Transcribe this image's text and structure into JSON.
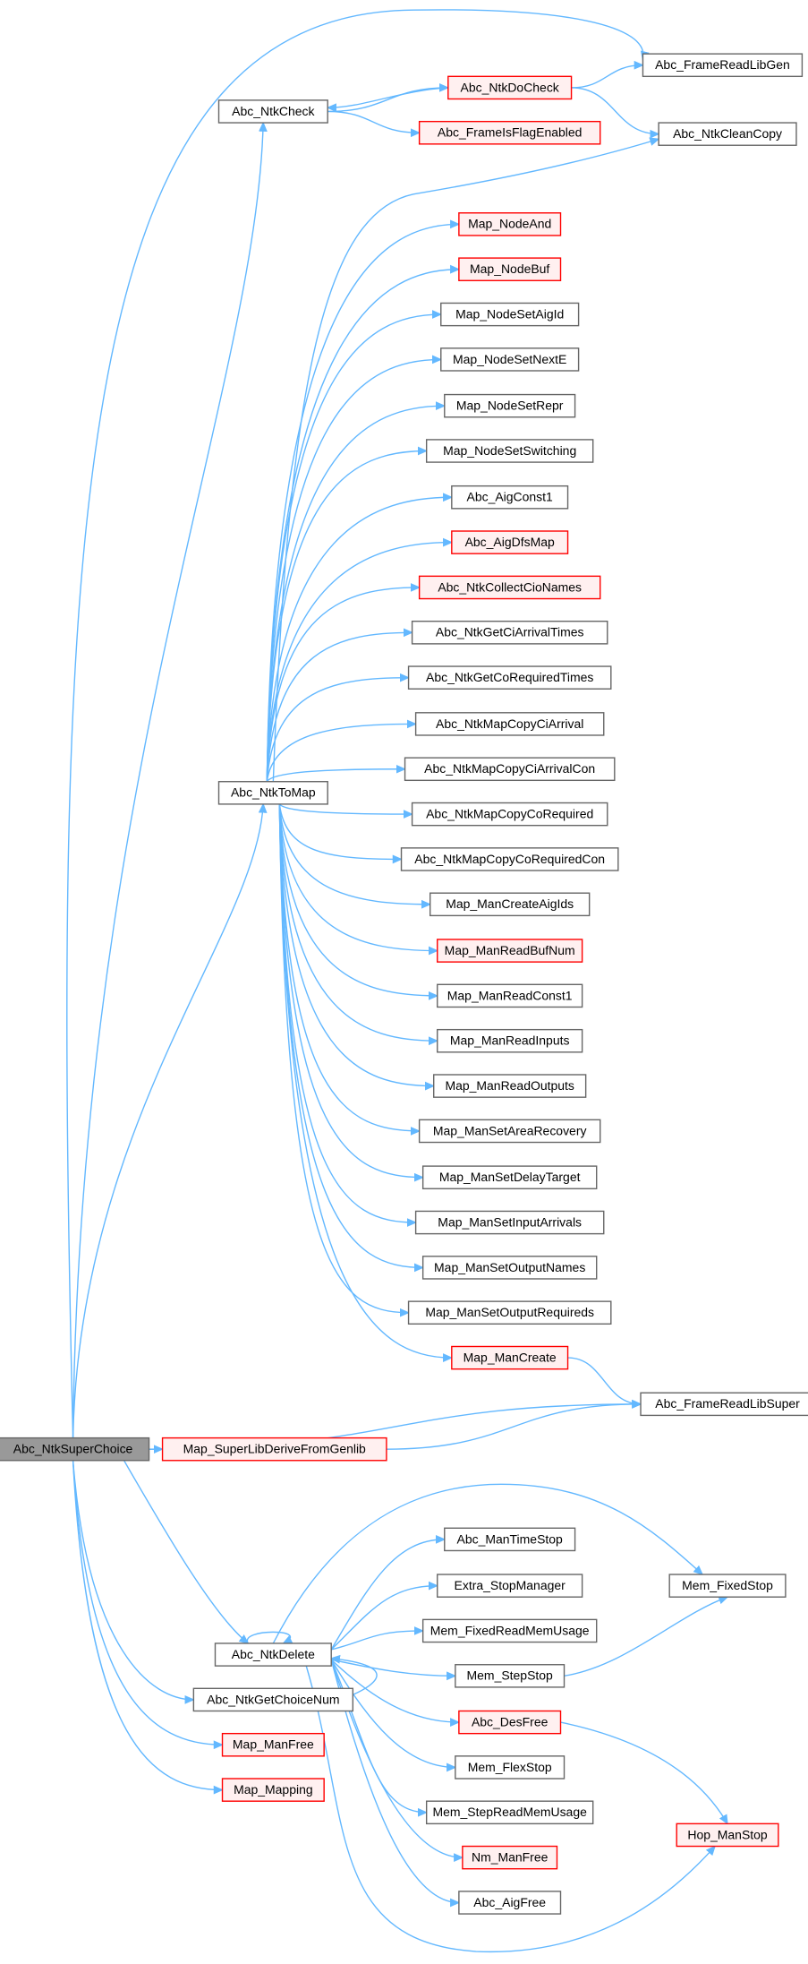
{
  "nodes": [
    {
      "label": "Abc_NtkSuperChoice",
      "style": "current"
    },
    {
      "label": "Abc_NtkCheck",
      "style": "plain"
    },
    {
      "label": "Abc_NtkDoCheck",
      "style": "red"
    },
    {
      "label": "Abc_FrameReadLibGen",
      "style": "plain"
    },
    {
      "label": "Abc_FrameIsFlagEnabled",
      "style": "red"
    },
    {
      "label": "Abc_NtkCleanCopy",
      "style": "plain"
    },
    {
      "label": "Abc_NtkToMap",
      "style": "plain"
    },
    {
      "label": "Map_NodeAnd",
      "style": "red"
    },
    {
      "label": "Map_NodeBuf",
      "style": "red"
    },
    {
      "label": "Map_NodeSetAigId",
      "style": "plain"
    },
    {
      "label": "Map_NodeSetNextE",
      "style": "plain"
    },
    {
      "label": "Map_NodeSetRepr",
      "style": "plain"
    },
    {
      "label": "Map_NodeSetSwitching",
      "style": "plain"
    },
    {
      "label": "Abc_AigConst1",
      "style": "plain"
    },
    {
      "label": "Abc_AigDfsMap",
      "style": "red"
    },
    {
      "label": "Abc_NtkCollectCioNames",
      "style": "red"
    },
    {
      "label": "Abc_NtkGetCiArrivalTimes",
      "style": "plain"
    },
    {
      "label": "Abc_NtkGetCoRequiredTimes",
      "style": "plain"
    },
    {
      "label": "Abc_NtkMapCopyCiArrival",
      "style": "plain"
    },
    {
      "label": "Abc_NtkMapCopyCiArrivalCon",
      "style": "plain"
    },
    {
      "label": "Abc_NtkMapCopyCoRequired",
      "style": "plain"
    },
    {
      "label": "Abc_NtkMapCopyCoRequiredCon",
      "style": "plain"
    },
    {
      "label": "Map_ManCreateAigIds",
      "style": "plain"
    },
    {
      "label": "Map_ManReadBufNum",
      "style": "red"
    },
    {
      "label": "Map_ManReadConst1",
      "style": "plain"
    },
    {
      "label": "Map_ManReadInputs",
      "style": "plain"
    },
    {
      "label": "Map_ManReadOutputs",
      "style": "plain"
    },
    {
      "label": "Map_ManSetAreaRecovery",
      "style": "plain"
    },
    {
      "label": "Map_ManSetDelayTarget",
      "style": "plain"
    },
    {
      "label": "Map_ManSetInputArrivals",
      "style": "plain"
    },
    {
      "label": "Map_ManSetOutputNames",
      "style": "plain"
    },
    {
      "label": "Map_ManSetOutputRequireds",
      "style": "plain"
    },
    {
      "label": "Map_ManCreate",
      "style": "red"
    },
    {
      "label": "Abc_FrameReadLibSuper",
      "style": "plain"
    },
    {
      "label": "Map_SuperLibDeriveFromGenlib",
      "style": "red"
    },
    {
      "label": "Abc_NtkDelete",
      "style": "plain"
    },
    {
      "label": "Abc_ManTimeStop",
      "style": "plain"
    },
    {
      "label": "Extra_StopManager",
      "style": "plain"
    },
    {
      "label": "Mem_FixedStop",
      "style": "plain"
    },
    {
      "label": "Mem_FixedReadMemUsage",
      "style": "plain"
    },
    {
      "label": "Mem_StepStop",
      "style": "plain"
    },
    {
      "label": "Abc_DesFree",
      "style": "red"
    },
    {
      "label": "Mem_FlexStop",
      "style": "plain"
    },
    {
      "label": "Mem_StepReadMemUsage",
      "style": "plain"
    },
    {
      "label": "Hop_ManStop",
      "style": "red"
    },
    {
      "label": "Nm_ManFree",
      "style": "red"
    },
    {
      "label": "Abc_AigFree",
      "style": "plain"
    },
    {
      "label": "Abc_NtkGetChoiceNum",
      "style": "plain"
    },
    {
      "label": "Map_ManFree",
      "style": "red"
    },
    {
      "label": "Map_Mapping",
      "style": "red"
    }
  ]
}
